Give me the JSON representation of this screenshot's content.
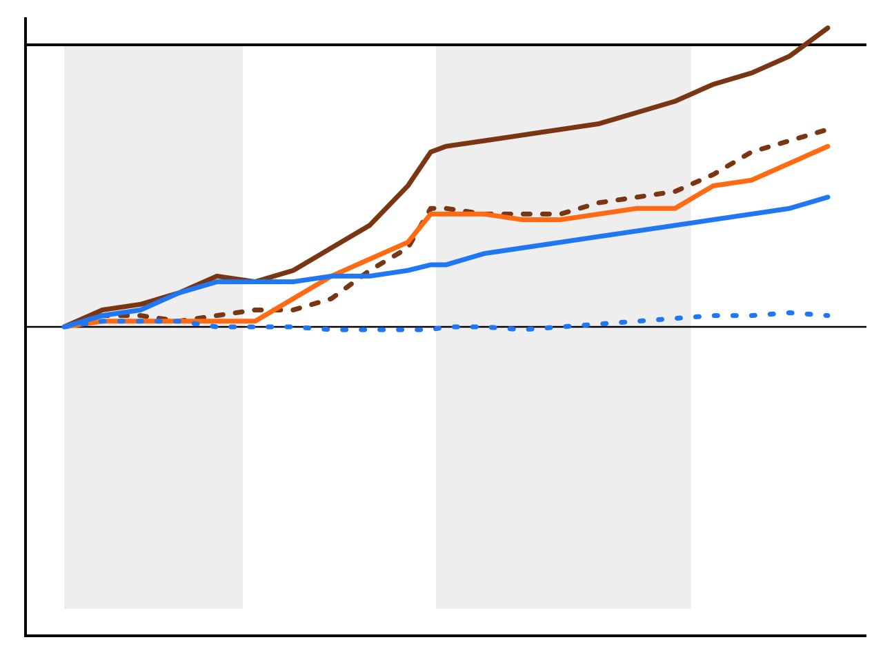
{
  "chart_data": {
    "type": "line",
    "title": "",
    "xlabel": "",
    "ylabel": "",
    "x_range": [
      0,
      100
    ],
    "y_range": [
      -0.5,
      0.5
    ],
    "reference_lines_y": [
      0,
      0.5
    ],
    "shaded_x_ranges": [
      [
        0,
        23.4
      ],
      [
        48.7,
        82.1
      ]
    ],
    "grid": false,
    "legend": "none",
    "series": [
      {
        "color": "#7a3512",
        "style": "solid",
        "x": [
          0,
          5,
          10,
          15,
          20,
          25,
          30,
          35,
          40,
          45,
          48,
          50,
          55,
          60,
          65,
          70,
          75,
          80,
          85,
          90,
          95,
          100
        ],
        "values": [
          0,
          0.03,
          0.04,
          0.06,
          0.09,
          0.08,
          0.1,
          0.14,
          0.18,
          0.25,
          0.31,
          0.32,
          0.33,
          0.34,
          0.35,
          0.36,
          0.38,
          0.4,
          0.43,
          0.45,
          0.48,
          0.53
        ]
      },
      {
        "color": "#7a3512",
        "style": "dashed",
        "x": [
          0,
          5,
          10,
          15,
          20,
          25,
          30,
          35,
          40,
          45,
          48,
          50,
          55,
          60,
          65,
          70,
          75,
          80,
          85,
          90,
          95,
          100
        ],
        "values": [
          0,
          0.02,
          0.02,
          0.01,
          0.02,
          0.03,
          0.03,
          0.05,
          0.1,
          0.14,
          0.21,
          0.21,
          0.2,
          0.2,
          0.2,
          0.22,
          0.23,
          0.24,
          0.27,
          0.31,
          0.33,
          0.35
        ]
      },
      {
        "color": "#ff6a13",
        "style": "solid",
        "x": [
          0,
          5,
          10,
          15,
          20,
          25,
          30,
          35,
          40,
          45,
          48,
          50,
          55,
          60,
          65,
          70,
          75,
          80,
          85,
          90,
          95,
          100
        ],
        "values": [
          0,
          0.01,
          0.01,
          0.01,
          0.01,
          0.01,
          0.05,
          0.09,
          0.12,
          0.15,
          0.2,
          0.2,
          0.2,
          0.19,
          0.19,
          0.2,
          0.21,
          0.21,
          0.25,
          0.26,
          0.29,
          0.32
        ]
      },
      {
        "color": "#1f77f4",
        "style": "solid",
        "x": [
          0,
          5,
          10,
          15,
          20,
          25,
          30,
          35,
          40,
          45,
          48,
          50,
          55,
          60,
          65,
          70,
          75,
          80,
          85,
          90,
          95,
          100
        ],
        "values": [
          0,
          0.02,
          0.03,
          0.06,
          0.08,
          0.08,
          0.08,
          0.09,
          0.09,
          0.1,
          0.11,
          0.11,
          0.13,
          0.14,
          0.15,
          0.16,
          0.17,
          0.18,
          0.19,
          0.2,
          0.21,
          0.23
        ]
      },
      {
        "color": "#1f77f4",
        "style": "dotted",
        "x": [
          0,
          5,
          10,
          15,
          20,
          25,
          30,
          35,
          40,
          45,
          48,
          50,
          55,
          60,
          65,
          70,
          75,
          80,
          85,
          90,
          95,
          100
        ],
        "values": [
          0,
          0.01,
          0.01,
          0.01,
          0,
          0,
          0,
          -0.005,
          -0.005,
          -0.005,
          -0.005,
          0,
          0,
          -0.005,
          0,
          0.005,
          0.01,
          0.015,
          0.02,
          0.02,
          0.025,
          0.02
        ]
      }
    ]
  }
}
